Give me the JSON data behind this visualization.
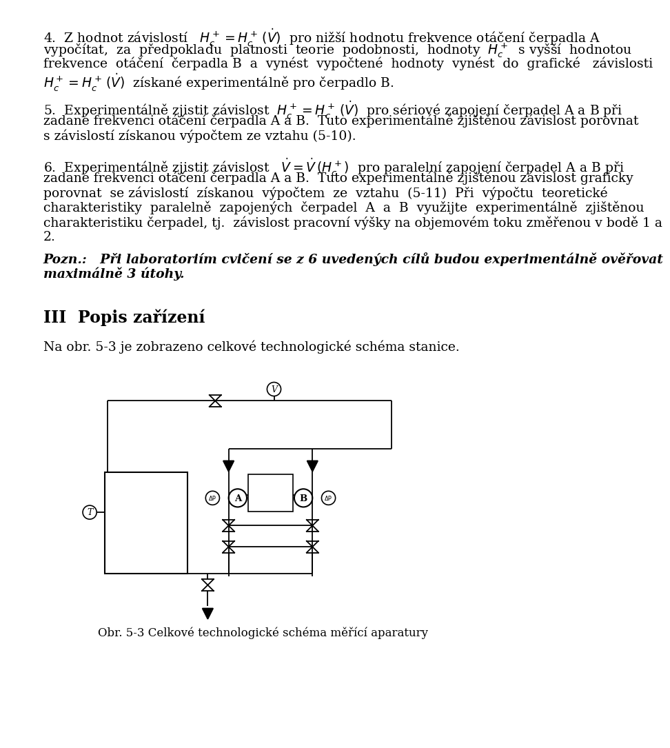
{
  "bg_color": "#ffffff",
  "lm": 68,
  "fs": 13.5,
  "lh": 28,
  "para4_line1": "4.  Z hodnot závislostí   $H_c^+ = H_c^+\\,(\\dot{V})$  pro nižší hodnotu frekvence otáčení čerpadla A",
  "para4_line2": "vypočítat,  za  předpokladu  platnosti  teorie  podobnosti,  hodnoty  $H_c^+$  s vyšší  hodnotou",
  "para4_line3": "frekvence  otáčení  čerpadla B  a  vynést  vypočtené  hodnoty  vynést  do  grafické   závislosti",
  "para4_line4": "$H_c^+ = H_c^+\\,(\\dot{V})$  získané experimentálně pro čerpadlo B.",
  "para5_line1": "5.  Experimentálně zjistit závislost  $H_c^+ = H_c^+\\,(\\dot{V})$  pro sériové zapojení čerpadel A a B při",
  "para5_line2": "zadané frekvenci otáčení čerpadla A a B.  Tuto experimentálně zjištěnou závislost porovnat",
  "para5_line3": "s závislostí získanou výpočtem ze vztahu (5-10).",
  "para6_line1": "6.  Experimentálně zjistit závislost   $\\dot{V} = \\dot{V}\\,(H_c^+)$  pro paralelní zapojení čerpadel A a B při",
  "para6_line2": "zadané frekvenci otáčení čerpadla A a B.  Tuto experimentálně zjištěnou závislost graficky",
  "para6_line3": "porovnat  se závislostí  získanou  výpočtem  ze  vztahu  (5-11)  Při  výpočtu  teoretické",
  "para6_line4": "charakteristiky  paralelně  zapojených  čerpadel  A  a  B  využijte  experimentálně  zjištěnou",
  "para6_line5": "charakteristiku čerpadel, tj.  závislost pracovní výšky na objemovém toku změřenou v bodě 1 a",
  "para6_line6": "2.",
  "pozn_line1": "Pozn.:   Při laboratoriím cvičení se z 6 uvedených cílů budou experimentálně ověřovat",
  "pozn_line2": "maximálně 3 útohy.",
  "section_heading": "III  Popis zařízení",
  "na_line": "Na obr. 5-3 je zobrazeno celkové technologické schéma stanice.",
  "caption": "Obr. 5-3 Celkové technologické schéma měřící aparatury"
}
